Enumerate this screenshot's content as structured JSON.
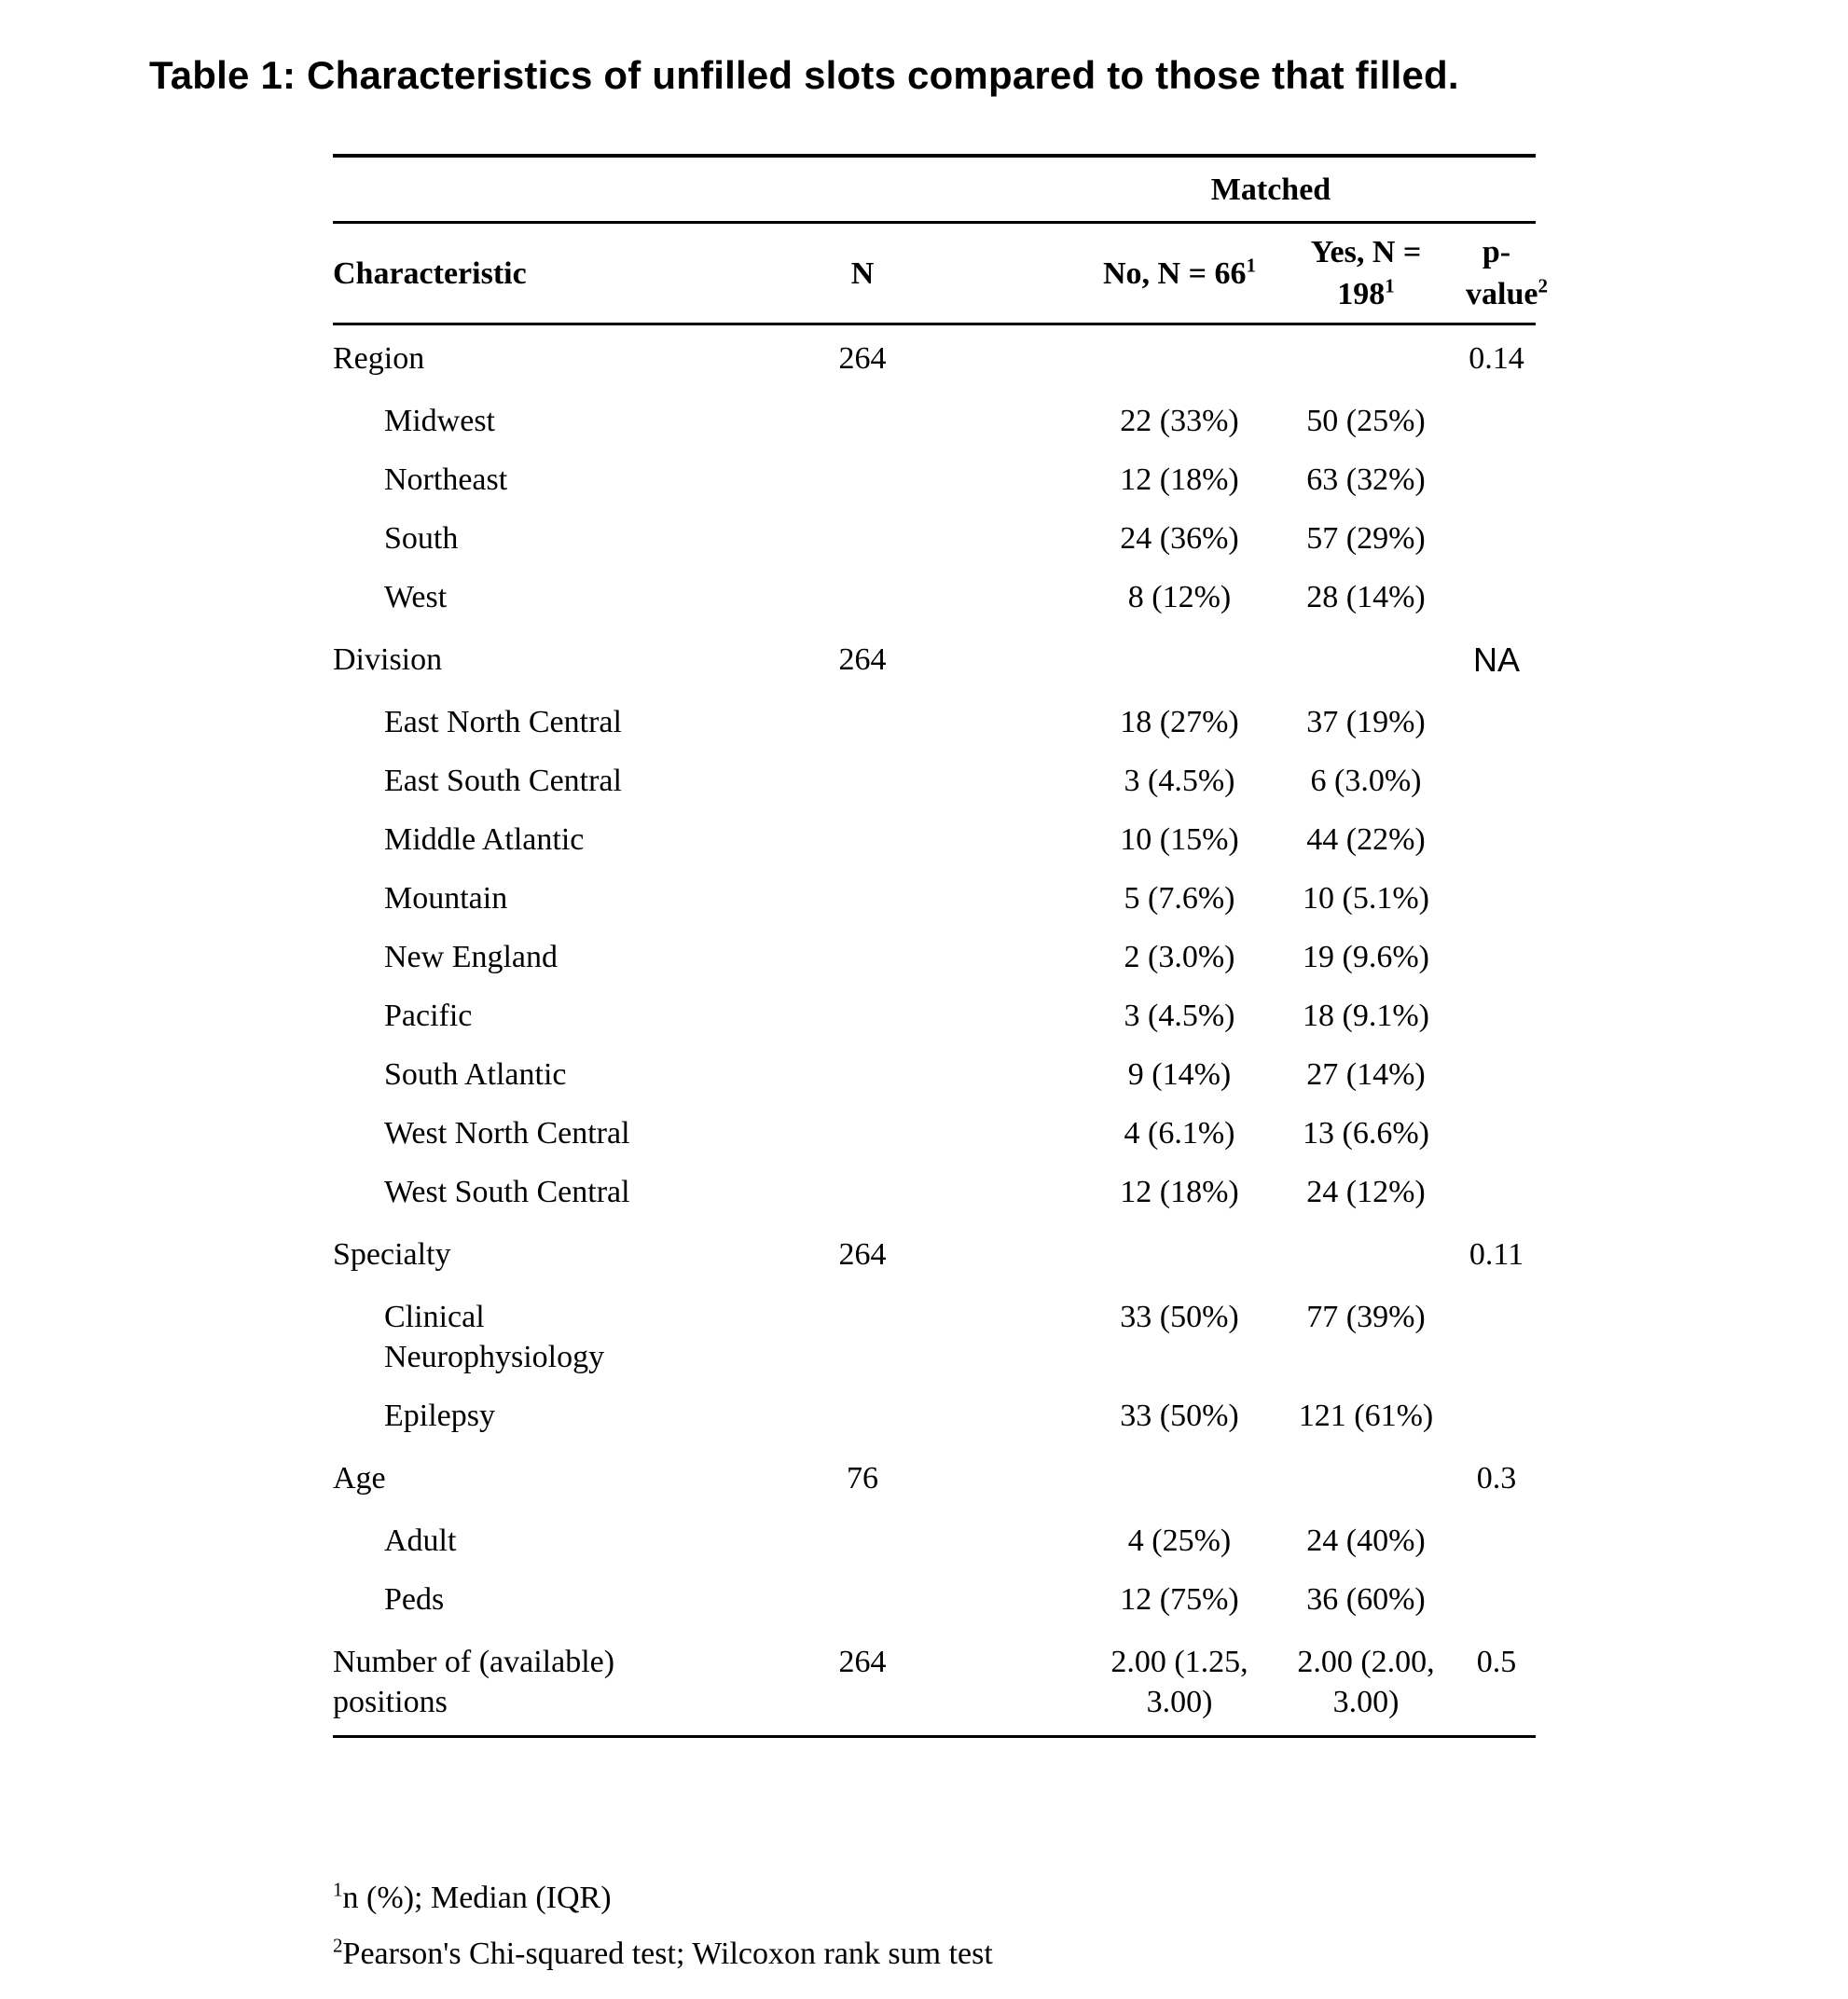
{
  "title": "Table 1: Characteristics of unfilled slots compared to those that filled.",
  "table": {
    "spanner": "Matched",
    "headers": {
      "characteristic": "Characteristic",
      "n": "N",
      "no": {
        "text": "No, N = 66",
        "sup": "1"
      },
      "yes": {
        "text": "Yes, N = 198",
        "sup": "1"
      },
      "p": {
        "text": "p-value",
        "sup": "2"
      }
    },
    "rows": [
      {
        "label": "Region",
        "indent": false,
        "n": "264",
        "no": "",
        "yes": "",
        "p": "0.14"
      },
      {
        "label": "Midwest",
        "indent": true,
        "n": "",
        "no": "22 (33%)",
        "yes": "50 (25%)",
        "p": ""
      },
      {
        "label": "Northeast",
        "indent": true,
        "n": "",
        "no": "12 (18%)",
        "yes": "63 (32%)",
        "p": ""
      },
      {
        "label": "South",
        "indent": true,
        "n": "",
        "no": "24 (36%)",
        "yes": "57 (29%)",
        "p": ""
      },
      {
        "label": "West",
        "indent": true,
        "n": "",
        "no": "8 (12%)",
        "yes": "28 (14%)",
        "p": ""
      },
      {
        "label": "Division",
        "indent": false,
        "n": "264",
        "no": "",
        "yes": "",
        "p": "NA",
        "p_sans": true
      },
      {
        "label": "East North Central",
        "indent": true,
        "n": "",
        "no": "18 (27%)",
        "yes": "37 (19%)",
        "p": ""
      },
      {
        "label": "East South Central",
        "indent": true,
        "n": "",
        "no": "3 (4.5%)",
        "yes": "6 (3.0%)",
        "p": ""
      },
      {
        "label": "Middle Atlantic",
        "indent": true,
        "n": "",
        "no": "10 (15%)",
        "yes": "44 (22%)",
        "p": ""
      },
      {
        "label": "Mountain",
        "indent": true,
        "n": "",
        "no": "5 (7.6%)",
        "yes": "10 (5.1%)",
        "p": ""
      },
      {
        "label": "New England",
        "indent": true,
        "n": "",
        "no": "2 (3.0%)",
        "yes": "19 (9.6%)",
        "p": ""
      },
      {
        "label": "Pacific",
        "indent": true,
        "n": "",
        "no": "3 (4.5%)",
        "yes": "18 (9.1%)",
        "p": ""
      },
      {
        "label": "South Atlantic",
        "indent": true,
        "n": "",
        "no": "9 (14%)",
        "yes": "27 (14%)",
        "p": ""
      },
      {
        "label": "West North Central",
        "indent": true,
        "n": "",
        "no": "4 (6.1%)",
        "yes": "13 (6.6%)",
        "p": ""
      },
      {
        "label": "West South Central",
        "indent": true,
        "n": "",
        "no": "12 (18%)",
        "yes": "24 (12%)",
        "p": ""
      },
      {
        "label": "Specialty",
        "indent": false,
        "n": "264",
        "no": "",
        "yes": "",
        "p": "0.11"
      },
      {
        "label": "Clinical Neurophysiology",
        "indent": true,
        "n": "",
        "no": "33 (50%)",
        "yes": "77 (39%)",
        "p": ""
      },
      {
        "label": "Epilepsy",
        "indent": true,
        "n": "",
        "no": "33 (50%)",
        "yes": "121 (61%)",
        "p": ""
      },
      {
        "label": "Age",
        "indent": false,
        "n": "76",
        "no": "",
        "yes": "",
        "p": "0.3"
      },
      {
        "label": "Adult",
        "indent": true,
        "n": "",
        "no": "4 (25%)",
        "yes": "24 (40%)",
        "p": ""
      },
      {
        "label": "Peds",
        "indent": true,
        "n": "",
        "no": "12 (75%)",
        "yes": "36 (60%)",
        "p": ""
      },
      {
        "label": "Number of (available) positions",
        "indent": false,
        "n": "264",
        "no": "2.00 (1.25, 3.00)",
        "yes": "2.00 (2.00, 3.00)",
        "p": "0.5"
      }
    ]
  },
  "footnotes": [
    {
      "sup": "1",
      "text": "n (%); Median (IQR)"
    },
    {
      "sup": "2",
      "text": "Pearson's Chi-squared test; Wilcoxon rank sum test"
    }
  ]
}
